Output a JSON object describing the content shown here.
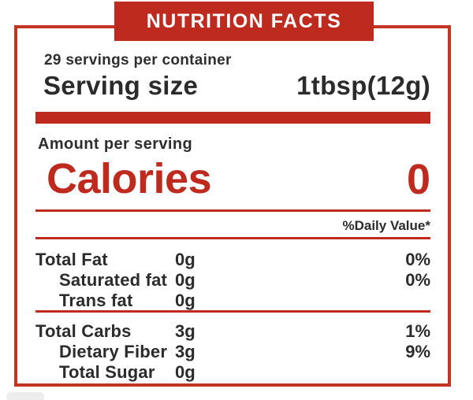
{
  "colors": {
    "accent_red": "#BE2A1E",
    "border_red": "#C23522",
    "text_dark": "#2D2D2D",
    "background": "#FFFFFF"
  },
  "header": {
    "title": "NUTRITION FACTS"
  },
  "serving": {
    "per_container": "29 servings per container",
    "size_label": "Serving size",
    "size_value": "1tbsp(12g)"
  },
  "calories": {
    "amount_label": "Amount per serving",
    "label": "Calories",
    "value": "0"
  },
  "daily_value_note": "%Daily Value*",
  "nutrients": {
    "fat": [
      {
        "name": "Total Fat",
        "amount": "0g",
        "dv": "0%"
      },
      {
        "name": "Saturated fat",
        "amount": "0g",
        "dv": "0%"
      },
      {
        "name": "Trans fat",
        "amount": "0g",
        "dv": ""
      }
    ],
    "carbs": [
      {
        "name": "Total Carbs",
        "amount": "3g",
        "dv": "1%"
      },
      {
        "name": "Dietary Fiber",
        "amount": "3g",
        "dv": "9%"
      },
      {
        "name": "Total Sugar",
        "amount": "0g",
        "dv": ""
      }
    ]
  }
}
